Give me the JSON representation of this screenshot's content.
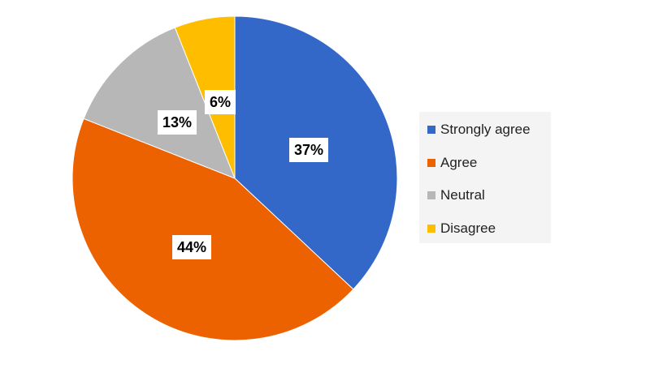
{
  "chart_data": {
    "type": "pie",
    "title": "",
    "categories": [
      "Strongly agree",
      "Agree",
      "Neutral",
      "Disagree"
    ],
    "values": [
      37,
      44,
      13,
      6
    ],
    "data_labels": [
      "37%",
      "44%",
      "13%",
      "6%"
    ],
    "colors": [
      "#3468c8",
      "#ec6100",
      "#b7b7b7",
      "#ffbd00"
    ],
    "start_angle_deg": 0,
    "direction": "clockwise",
    "legend_position": "right"
  },
  "legend": {
    "items": [
      {
        "label": "Strongly agree",
        "color": "#3468c8"
      },
      {
        "label": "Agree",
        "color": "#ec6100"
      },
      {
        "label": "Neutral",
        "color": "#b7b7b7"
      },
      {
        "label": "Disagree",
        "color": "#ffbd00"
      }
    ]
  }
}
